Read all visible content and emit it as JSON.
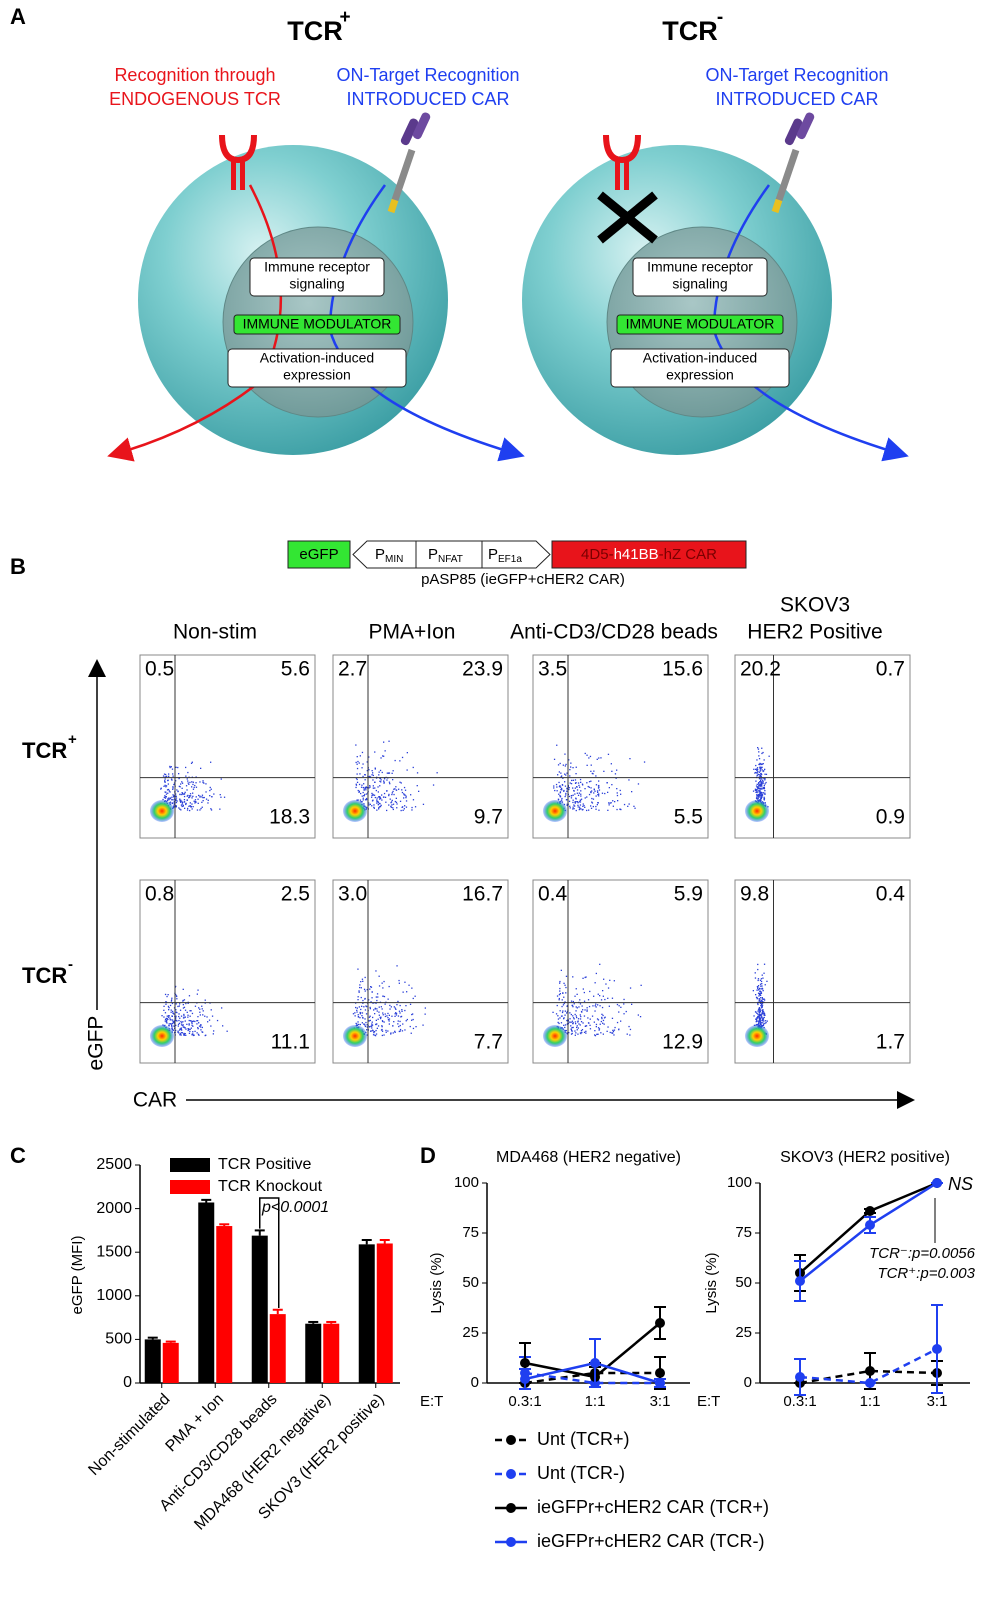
{
  "panel_a": {
    "label": "A",
    "cells": [
      {
        "title": "TCR",
        "sign": "+",
        "endogenous": [
          "Recognition through",
          "ENDOGENOUS TCR"
        ],
        "car": [
          "ON-Target Recognition",
          "INTRODUCED CAR"
        ],
        "signaling": [
          "Immune receptor",
          "signaling"
        ],
        "modulator": "IMMUNE MODULATOR",
        "expression": [
          "Activation-induced",
          "expression"
        ]
      },
      {
        "title": "TCR",
        "sign": "-",
        "car": [
          "ON-Target Recognition",
          "INTRODUCED CAR"
        ],
        "signaling": [
          "Immune receptor",
          "signaling"
        ],
        "modulator": "IMMUNE MODULATOR",
        "expression": [
          "Activation-induced",
          "expression"
        ]
      }
    ]
  },
  "panel_b": {
    "label": "B",
    "construct": {
      "reporter": "eGFP",
      "promoters": [
        {
          "p": "P",
          "sub": "MIN"
        },
        {
          "p": "P",
          "sub": "NFAT"
        },
        {
          "p": "P",
          "sub": "EF1a"
        }
      ],
      "car": [
        "4D5-",
        "h41BB",
        "-hZ CAR"
      ],
      "caption": "pASP85 (ieGFP+cHER2 CAR)"
    },
    "columns": [
      [
        "Non-stim"
      ],
      [
        "PMA+Ion"
      ],
      [
        "Anti-CD3/CD28 beads"
      ],
      [
        "SKOV3",
        "HER2 Positive"
      ]
    ],
    "rows": [
      {
        "title": "TCR",
        "sign": "+",
        "quadrants": [
          [
            "0.5",
            "5.6",
            "18.3"
          ],
          [
            "2.7",
            "23.9",
            "9.7"
          ],
          [
            "3.5",
            "15.6",
            "5.5"
          ],
          [
            "20.2",
            "0.7",
            "0.9"
          ]
        ]
      },
      {
        "title": "TCR",
        "sign": "-",
        "quadrants": [
          [
            "0.8",
            "2.5",
            "11.1"
          ],
          [
            "3.0",
            "16.7",
            "7.7"
          ],
          [
            "0.4",
            "5.9",
            "12.9"
          ],
          [
            "9.8",
            "0.4",
            "1.7"
          ]
        ]
      }
    ],
    "y_axis": "eGFP",
    "x_axis": "CAR"
  },
  "panel_c": {
    "label": "C"
  },
  "panel_d": {
    "label": "D"
  },
  "chart_data": [
    {
      "type": "bar",
      "ylabel": "eGFP (MFI)",
      "categories": [
        "Non-stimulated",
        "PMA + Ion",
        "Anti-CD3/CD28 beads",
        "MDA468 (HER2 negative)",
        "SKOV3 (HER2 positive)"
      ],
      "series": [
        {
          "name": "TCR Positive",
          "color": "#000000",
          "values": [
            500,
            2070,
            1690,
            680,
            1590
          ],
          "errors": [
            20,
            30,
            60,
            20,
            50
          ]
        },
        {
          "name": "TCR Knockout",
          "color": "#ff0000",
          "values": [
            460,
            1800,
            790,
            680,
            1600
          ],
          "errors": [
            15,
            20,
            50,
            20,
            40
          ]
        }
      ],
      "ylim": [
        0,
        2500
      ],
      "yticks": [
        0,
        500,
        1000,
        1500,
        2000,
        2500
      ],
      "annotations": [
        "p<0.0001"
      ]
    },
    {
      "type": "line",
      "title": "MDA468 (HER2 negative)",
      "ylabel": "Lysis (%)",
      "xlabel": "E:T",
      "categories": [
        "0.3:1",
        "1:1",
        "3:1"
      ],
      "series": [
        {
          "name": "Unt (TCR+)",
          "color": "#000000",
          "dashed": true,
          "values": [
            0,
            5,
            5
          ],
          "errors": [
            0,
            5,
            8
          ]
        },
        {
          "name": "Unt (TCR-)",
          "color": "#1f3ff0",
          "dashed": true,
          "values": [
            5,
            0,
            0
          ],
          "errors": [
            8,
            0,
            2
          ]
        },
        {
          "name": "ieGFPr+cHER2 CAR (TCR+)",
          "color": "#000000",
          "dashed": false,
          "values": [
            10,
            3,
            30
          ],
          "errors": [
            10,
            5,
            8
          ]
        },
        {
          "name": "ieGFPr+cHER2 CAR (TCR-)",
          "color": "#1f3ff0",
          "dashed": false,
          "values": [
            2,
            10,
            0
          ],
          "errors": [
            5,
            12,
            2
          ]
        }
      ],
      "ylim": [
        0,
        100
      ],
      "yticks": [
        0,
        25,
        50,
        75,
        100
      ],
      "legend": "below"
    },
    {
      "type": "line",
      "title": "SKOV3 (HER2 positive)",
      "ylabel": "Lysis (%)",
      "xlabel": "E:T",
      "categories": [
        "0.3:1",
        "1:1",
        "3:1"
      ],
      "series": [
        {
          "name": "Unt (TCR+)",
          "color": "#000000",
          "dashed": true,
          "values": [
            0,
            6,
            5
          ],
          "errors": [
            0,
            9,
            6
          ]
        },
        {
          "name": "Unt (TCR-)",
          "color": "#1f3ff0",
          "dashed": true,
          "values": [
            3,
            0,
            17
          ],
          "errors": [
            9,
            0,
            22
          ]
        },
        {
          "name": "ieGFPr+cHER2 CAR (TCR+)",
          "color": "#000000",
          "dashed": false,
          "values": [
            55,
            86,
            100
          ],
          "errors": [
            9,
            1,
            0
          ]
        },
        {
          "name": "ieGFPr+cHER2 CAR (TCR-)",
          "color": "#1f3ff0",
          "dashed": false,
          "values": [
            51,
            79,
            100
          ],
          "errors": [
            10,
            4,
            0
          ]
        }
      ],
      "ylim": [
        0,
        100
      ],
      "yticks": [
        0,
        25,
        50,
        75,
        100
      ],
      "annotations": [
        "NS",
        "TCR⁻:p=0.0056",
        "TCR⁺:p=0.003"
      ]
    }
  ]
}
